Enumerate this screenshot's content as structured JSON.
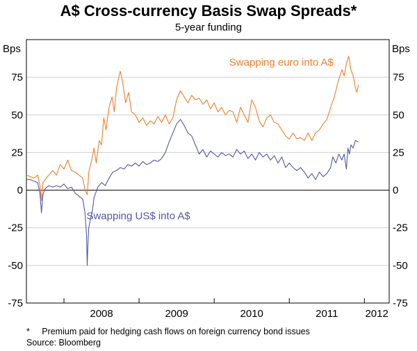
{
  "chart_data": {
    "type": "line",
    "title": "A$ Cross-currency Basis Swap Spreads*",
    "subtitle": "5-year funding",
    "ylabel_left": "Bps",
    "ylabel_right": "Bps",
    "ylim": [
      -75,
      100
    ],
    "yticks": [
      -75,
      -50,
      -25,
      0,
      25,
      50,
      75
    ],
    "x_tick_labels": [
      "2008",
      "2009",
      "2010",
      "2011",
      "2012"
    ],
    "x_start": 2007.5,
    "x_end": 2012.33,
    "series": [
      {
        "name": "Swapping euro into A$",
        "color": "#f07f2a",
        "points": [
          [
            2007.5,
            10
          ],
          [
            2007.55,
            9
          ],
          [
            2007.6,
            8
          ],
          [
            2007.65,
            10
          ],
          [
            2007.68,
            3
          ],
          [
            2007.7,
            -7
          ],
          [
            2007.72,
            5
          ],
          [
            2007.78,
            9
          ],
          [
            2007.85,
            13
          ],
          [
            2007.9,
            10
          ],
          [
            2007.95,
            17
          ],
          [
            2008.0,
            14
          ],
          [
            2008.05,
            20
          ],
          [
            2008.1,
            13
          ],
          [
            2008.15,
            12
          ],
          [
            2008.2,
            10
          ],
          [
            2008.25,
            8
          ],
          [
            2008.28,
            0
          ],
          [
            2008.31,
            -3
          ],
          [
            2008.33,
            12
          ],
          [
            2008.37,
            20
          ],
          [
            2008.4,
            28
          ],
          [
            2008.43,
            18
          ],
          [
            2008.47,
            33
          ],
          [
            2008.5,
            30
          ],
          [
            2008.53,
            48
          ],
          [
            2008.56,
            40
          ],
          [
            2008.6,
            55
          ],
          [
            2008.64,
            62
          ],
          [
            2008.67,
            52
          ],
          [
            2008.7,
            68
          ],
          [
            2008.73,
            75
          ],
          [
            2008.75,
            79
          ],
          [
            2008.78,
            72
          ],
          [
            2008.82,
            58
          ],
          [
            2008.86,
            65
          ],
          [
            2008.9,
            52
          ],
          [
            2008.95,
            50
          ],
          [
            2009.0,
            45
          ],
          [
            2009.05,
            48
          ],
          [
            2009.1,
            43
          ],
          [
            2009.15,
            46
          ],
          [
            2009.2,
            44
          ],
          [
            2009.25,
            49
          ],
          [
            2009.3,
            45
          ],
          [
            2009.35,
            50
          ],
          [
            2009.4,
            44
          ],
          [
            2009.45,
            48
          ],
          [
            2009.5,
            60
          ],
          [
            2009.55,
            66
          ],
          [
            2009.6,
            62
          ],
          [
            2009.65,
            58
          ],
          [
            2009.7,
            63
          ],
          [
            2009.75,
            60
          ],
          [
            2009.8,
            61
          ],
          [
            2009.85,
            57
          ],
          [
            2009.9,
            60
          ],
          [
            2009.95,
            54
          ],
          [
            2010.0,
            58
          ],
          [
            2010.05,
            52
          ],
          [
            2010.1,
            55
          ],
          [
            2010.15,
            50
          ],
          [
            2010.2,
            53
          ],
          [
            2010.25,
            52
          ],
          [
            2010.3,
            45
          ],
          [
            2010.35,
            55
          ],
          [
            2010.4,
            50
          ],
          [
            2010.45,
            45
          ],
          [
            2010.5,
            60
          ],
          [
            2010.55,
            55
          ],
          [
            2010.6,
            46
          ],
          [
            2010.65,
            42
          ],
          [
            2010.7,
            48
          ],
          [
            2010.75,
            50
          ],
          [
            2010.8,
            45
          ],
          [
            2010.85,
            44
          ],
          [
            2010.9,
            40
          ],
          [
            2010.95,
            36
          ],
          [
            2011.0,
            34
          ],
          [
            2011.05,
            38
          ],
          [
            2011.1,
            34
          ],
          [
            2011.15,
            35
          ],
          [
            2011.2,
            33
          ],
          [
            2011.25,
            38
          ],
          [
            2011.3,
            33
          ],
          [
            2011.35,
            38
          ],
          [
            2011.4,
            40
          ],
          [
            2011.45,
            44
          ],
          [
            2011.5,
            47
          ],
          [
            2011.55,
            55
          ],
          [
            2011.6,
            62
          ],
          [
            2011.65,
            72
          ],
          [
            2011.7,
            80
          ],
          [
            2011.73,
            76
          ],
          [
            2011.76,
            84
          ],
          [
            2011.79,
            89
          ],
          [
            2011.82,
            80
          ],
          [
            2011.85,
            76
          ],
          [
            2011.88,
            68
          ],
          [
            2011.9,
            65
          ],
          [
            2011.92,
            70
          ]
        ]
      },
      {
        "name": "Swapping US$ into A$",
        "color": "#5557a6",
        "points": [
          [
            2007.5,
            7
          ],
          [
            2007.55,
            7
          ],
          [
            2007.6,
            6
          ],
          [
            2007.65,
            5
          ],
          [
            2007.68,
            -2
          ],
          [
            2007.7,
            -15
          ],
          [
            2007.72,
            -3
          ],
          [
            2007.75,
            1
          ],
          [
            2007.8,
            3
          ],
          [
            2007.85,
            2
          ],
          [
            2007.9,
            3
          ],
          [
            2007.95,
            2
          ],
          [
            2008.0,
            4
          ],
          [
            2008.05,
            1
          ],
          [
            2008.1,
            2
          ],
          [
            2008.15,
            -2
          ],
          [
            2008.2,
            -4
          ],
          [
            2008.25,
            -6
          ],
          [
            2008.28,
            -15
          ],
          [
            2008.3,
            -30
          ],
          [
            2008.31,
            -50
          ],
          [
            2008.32,
            -35
          ],
          [
            2008.33,
            -25
          ],
          [
            2008.35,
            -20
          ],
          [
            2008.38,
            -13
          ],
          [
            2008.4,
            -5
          ],
          [
            2008.45,
            2
          ],
          [
            2008.5,
            5
          ],
          [
            2008.55,
            3
          ],
          [
            2008.6,
            8
          ],
          [
            2008.65,
            12
          ],
          [
            2008.7,
            13
          ],
          [
            2008.75,
            15
          ],
          [
            2008.8,
            14
          ],
          [
            2008.85,
            17
          ],
          [
            2008.9,
            16
          ],
          [
            2008.95,
            18
          ],
          [
            2009.0,
            16
          ],
          [
            2009.05,
            19
          ],
          [
            2009.1,
            17
          ],
          [
            2009.15,
            18
          ],
          [
            2009.2,
            20
          ],
          [
            2009.25,
            19
          ],
          [
            2009.3,
            21
          ],
          [
            2009.35,
            25
          ],
          [
            2009.4,
            32
          ],
          [
            2009.45,
            38
          ],
          [
            2009.5,
            44
          ],
          [
            2009.55,
            47
          ],
          [
            2009.6,
            43
          ],
          [
            2009.65,
            38
          ],
          [
            2009.7,
            36
          ],
          [
            2009.75,
            30
          ],
          [
            2009.8,
            24
          ],
          [
            2009.85,
            27
          ],
          [
            2009.9,
            22
          ],
          [
            2009.95,
            26
          ],
          [
            2010.0,
            24
          ],
          [
            2010.05,
            22
          ],
          [
            2010.1,
            25
          ],
          [
            2010.15,
            23
          ],
          [
            2010.2,
            24
          ],
          [
            2010.25,
            22
          ],
          [
            2010.3,
            27
          ],
          [
            2010.35,
            24
          ],
          [
            2010.4,
            26
          ],
          [
            2010.45,
            21
          ],
          [
            2010.5,
            24
          ],
          [
            2010.55,
            20
          ],
          [
            2010.6,
            25
          ],
          [
            2010.65,
            22
          ],
          [
            2010.7,
            24
          ],
          [
            2010.75,
            20
          ],
          [
            2010.8,
            23
          ],
          [
            2010.85,
            18
          ],
          [
            2010.9,
            22
          ],
          [
            2010.95,
            15
          ],
          [
            2011.0,
            18
          ],
          [
            2011.05,
            15
          ],
          [
            2011.1,
            13
          ],
          [
            2011.15,
            15
          ],
          [
            2011.2,
            12
          ],
          [
            2011.25,
            8
          ],
          [
            2011.3,
            11
          ],
          [
            2011.35,
            7
          ],
          [
            2011.4,
            12
          ],
          [
            2011.45,
            9
          ],
          [
            2011.5,
            11
          ],
          [
            2011.55,
            15
          ],
          [
            2011.58,
            22
          ],
          [
            2011.62,
            18
          ],
          [
            2011.66,
            24
          ],
          [
            2011.7,
            20
          ],
          [
            2011.73,
            24
          ],
          [
            2011.76,
            14
          ],
          [
            2011.78,
            28
          ],
          [
            2011.8,
            24
          ],
          [
            2011.82,
            30
          ],
          [
            2011.85,
            28
          ],
          [
            2011.88,
            33
          ],
          [
            2011.92,
            32
          ]
        ]
      }
    ],
    "annotations": [
      {
        "text": "Swapping euro into A$",
        "x": 2010.2,
        "y": 85,
        "color": "#f07f2a"
      },
      {
        "text": "Swapping US$ into A$",
        "x": 2008.3,
        "y": -17,
        "color": "#5557a6"
      }
    ]
  },
  "footnote": "*     Premium paid for hedging cash flows on foreign currency bond issues",
  "source": "Source: Bloomberg"
}
